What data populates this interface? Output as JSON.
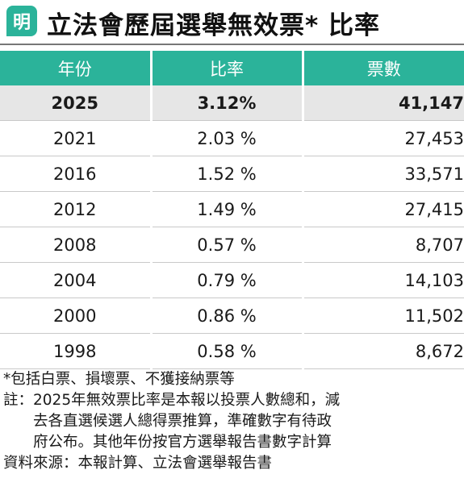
{
  "header": {
    "logo_char": "明",
    "title": "立法會歷屆選舉無效票* 比率"
  },
  "colors": {
    "accent": "#2bb39a",
    "highlight_row": "#e6e6e6"
  },
  "chart_data": {
    "type": "table",
    "columns": [
      "年份",
      "比率",
      "票數"
    ],
    "rows": [
      {
        "year": "2025",
        "ratio": "3.12%",
        "votes": "41,147",
        "bold": true
      },
      {
        "year": "2021",
        "ratio": "2.03 %",
        "votes": "27,453"
      },
      {
        "year": "2016",
        "ratio": "1.52 %",
        "votes": "33,571"
      },
      {
        "year": "2012",
        "ratio": "1.49 %",
        "votes": "27,415"
      },
      {
        "year": "2008",
        "ratio": "0.57 %",
        "votes": "8,707"
      },
      {
        "year": "2004",
        "ratio": "0.79 %",
        "votes": "14,103"
      },
      {
        "year": "2000",
        "ratio": "0.86 %",
        "votes": "11,502"
      },
      {
        "year": "1998",
        "ratio": "0.58 %",
        "votes": "8,672"
      }
    ]
  },
  "notes": {
    "footnote": "*包括白票、損壞票、不獲接納票等",
    "remark_label": "註：",
    "remark_lines": [
      "2025年無效票比率是本報以投票人數總和，減",
      "去各直選候選人總得票推算，準確數字有待政",
      "府公布。其他年份按官方選舉報告書數字計算"
    ],
    "source": "資料來源：本報計算、立法會選舉報告書"
  }
}
